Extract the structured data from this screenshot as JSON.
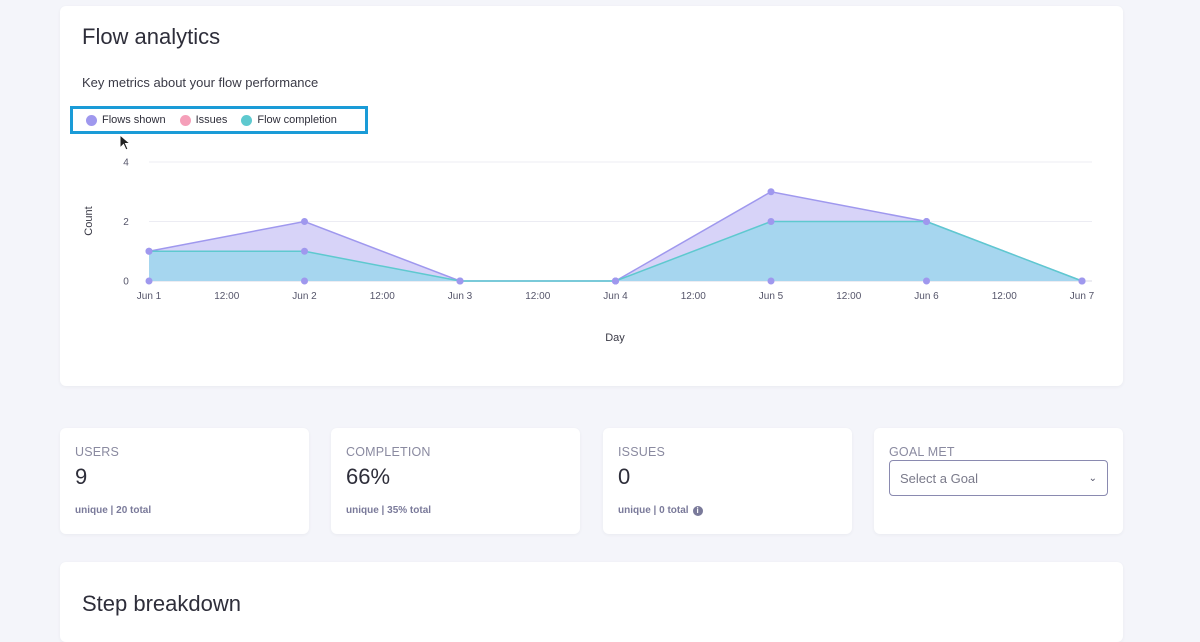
{
  "analytics": {
    "title": "Flow analytics",
    "subtitle": "Key metrics about your flow performance",
    "legend": [
      {
        "label": "Flows shown",
        "color": "#9f98ee"
      },
      {
        "label": "Issues",
        "color": "#f59fb9"
      },
      {
        "label": "Flow completion",
        "color": "#5ec9cf"
      }
    ]
  },
  "chart_data": {
    "type": "area",
    "x": [
      "Jun 1",
      "Jun 2",
      "Jun 3",
      "Jun 4",
      "Jun 5",
      "Jun 6",
      "Jun 7"
    ],
    "x_tick_labels": [
      "Jun 1",
      "12:00",
      "Jun 2",
      "12:00",
      "Jun 3",
      "12:00",
      "Jun 4",
      "12:00",
      "Jun 5",
      "12:00",
      "Jun 6",
      "12:00",
      "Jun 7"
    ],
    "y_ticks": [
      0,
      2,
      4
    ],
    "ylim": [
      0,
      4
    ],
    "xlabel": "Day",
    "ylabel": "Count",
    "grid": true,
    "legend_position": "top-left",
    "series": [
      {
        "name": "Flows shown",
        "values": [
          1,
          2,
          0,
          0,
          3,
          2,
          0
        ],
        "color": "#9f98ee"
      },
      {
        "name": "Issues",
        "values": [
          0,
          0,
          0,
          0,
          0,
          0,
          0
        ],
        "color": "#f59fb9"
      },
      {
        "name": "Flow completion",
        "values": [
          1,
          1,
          0,
          0,
          2,
          2,
          0
        ],
        "color": "#5ec9cf"
      }
    ]
  },
  "stats": [
    {
      "label": "USERS",
      "value": "9",
      "sub": "unique | 20 total"
    },
    {
      "label": "COMPLETION",
      "value": "66%",
      "sub": "unique | 35% total"
    },
    {
      "label": "ISSUES",
      "value": "0",
      "sub": "unique | 0 total"
    }
  ],
  "goal": {
    "label": "GOAL MET",
    "placeholder": "Select a Goal"
  },
  "steps": {
    "title": "Step breakdown"
  },
  "icons": {
    "info": "info-icon",
    "chevron": "chevron-down-icon",
    "cursor": "mouse-cursor-icon"
  }
}
